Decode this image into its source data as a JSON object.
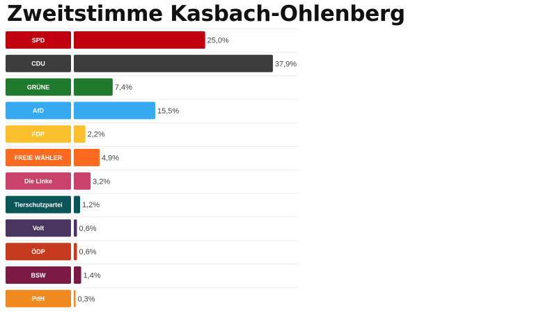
{
  "chart_data": {
    "type": "bar",
    "orientation": "horizontal",
    "title": "Zweitstimme Kasbach-Ohlenberg",
    "categories": [
      "SPD",
      "CDU",
      "GRÜNE",
      "AfD",
      "FDP",
      "FREIE WÄHLER",
      "Die Linke",
      "Tierschutzpartei",
      "Volt",
      "ÖDP",
      "BSW",
      "PdH"
    ],
    "values": [
      25.0,
      37.9,
      7.4,
      15.5,
      2.2,
      4.9,
      3.2,
      1.2,
      0.6,
      0.6,
      1.4,
      0.3
    ],
    "value_labels": [
      "25,0%",
      "37,9%",
      "7,4%",
      "15,5%",
      "2,2%",
      "4,9%",
      "3,2%",
      "1,2%",
      "0,6%",
      "0,6%",
      "1,4%",
      "0,3%"
    ],
    "colors": [
      "#c0000f",
      "#3d3d3d",
      "#1f7a2e",
      "#35aaf0",
      "#fbc02d",
      "#fb6a1e",
      "#c8426c",
      "#0a5558",
      "#4a3560",
      "#c63a1f",
      "#7a1a45",
      "#f08a20"
    ],
    "unit": "%",
    "xlabel": "",
    "ylabel": "",
    "xlim": [
      0,
      37.9
    ],
    "grid": true,
    "legend": "none"
  }
}
